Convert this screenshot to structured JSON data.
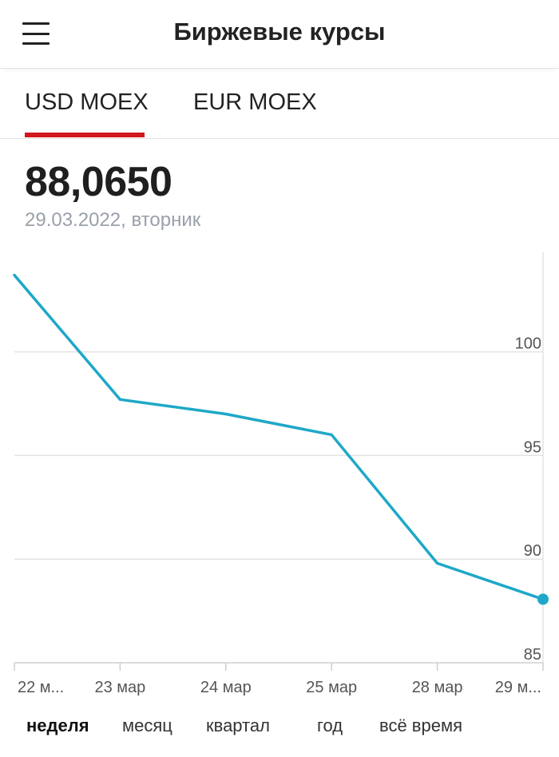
{
  "header": {
    "title": "Биржевые курсы"
  },
  "tabs": [
    {
      "label": "USD MOEX",
      "active": true
    },
    {
      "label": "EUR MOEX",
      "active": false
    }
  ],
  "quote": {
    "value": "88,0650",
    "date": "29.03.2022, вторник"
  },
  "colors": {
    "accent": "#d2181c",
    "line": "#1ea8c8",
    "grid": "#e3e3e3"
  },
  "chart_data": {
    "type": "line",
    "categories": [
      "22 м...",
      "23 мар",
      "24 мар",
      "25 мар",
      "28 мар",
      "29 м..."
    ],
    "values": [
      103.7,
      97.7,
      97.0,
      96.0,
      89.8,
      88.065
    ],
    "ylim": [
      85,
      104.8
    ],
    "yticks": [
      "100",
      "95",
      "90",
      "85"
    ],
    "grid": true,
    "last_point_marker": true
  },
  "periods": [
    {
      "label": "неделя",
      "active": true
    },
    {
      "label": "месяц",
      "active": false
    },
    {
      "label": "квартал",
      "active": false
    },
    {
      "label": "год",
      "active": false
    },
    {
      "label": "всё время",
      "active": false
    }
  ]
}
